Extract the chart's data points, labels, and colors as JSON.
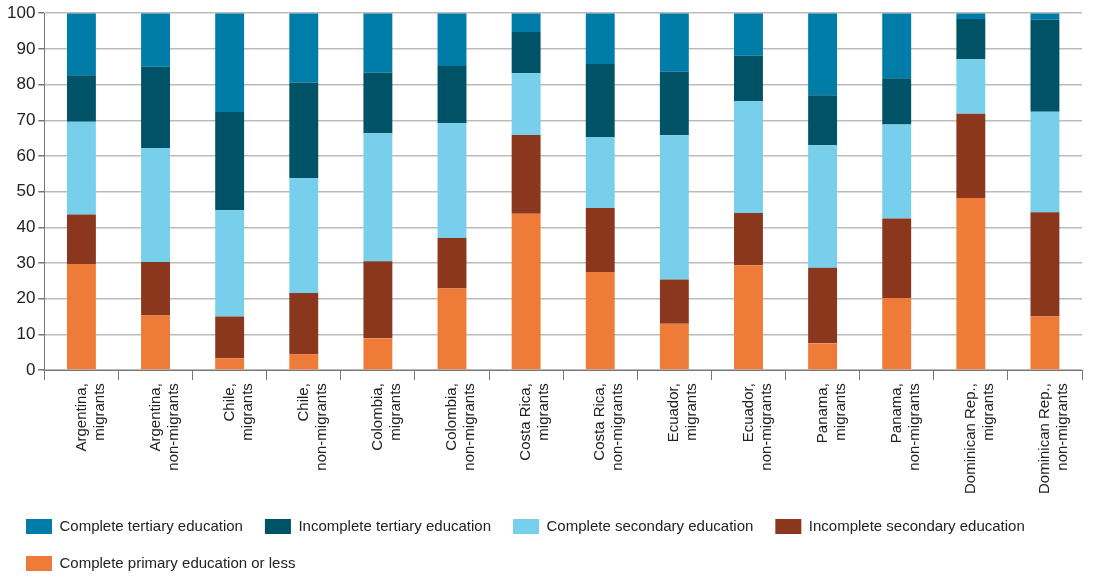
{
  "chart_data": {
    "type": "bar",
    "stacked": true,
    "categories": [
      "Argentina, migrants",
      "Argentina, non-migrants",
      "Chile, migrants",
      "Chile, non-migrants",
      "Colombia, migrants",
      "Colombia, non-migrants",
      "Costa Rica, migrants",
      "Costa Rica, non-migrants",
      "Ecuador, migrants",
      "Ecuador, non-migrants",
      "Panama, migrants",
      "Panama, non-migrants",
      "Dominican Rep., migrants",
      "Dominican Rep., non-migrants"
    ],
    "series": [
      {
        "name": "Complete primary education or less",
        "color": "#ef7b39",
        "values": [
          29.7,
          15.3,
          3.3,
          4.4,
          8.9,
          22.9,
          43.8,
          27.5,
          13.0,
          29.4,
          7.5,
          20.2,
          48.2,
          15.0
        ]
      },
      {
        "name": "Incomplete secondary education",
        "color": "#8b371d",
        "values": [
          13.9,
          15.0,
          11.7,
          17.2,
          21.6,
          14.1,
          22.1,
          17.9,
          12.4,
          14.6,
          21.2,
          22.3,
          23.6,
          29.2
        ]
      },
      {
        "name": "Complete secondary education",
        "color": "#78cfeb",
        "values": [
          26.0,
          31.9,
          29.8,
          32.2,
          35.9,
          32.2,
          17.3,
          19.9,
          40.4,
          31.4,
          34.3,
          26.3,
          15.3,
          28.2
        ]
      },
      {
        "name": "Incomplete tertiary education",
        "color": "#005366",
        "values": [
          13.0,
          22.8,
          27.5,
          26.8,
          17.0,
          16.0,
          11.5,
          20.5,
          17.8,
          12.7,
          14.0,
          13.0,
          11.3,
          25.8
        ]
      },
      {
        "name": "Complete tertiary education",
        "color": "#007ca8",
        "values": [
          17.4,
          15.0,
          27.7,
          19.4,
          16.6,
          14.8,
          5.3,
          14.2,
          16.4,
          11.9,
          23.0,
          18.2,
          1.6,
          1.8
        ]
      }
    ],
    "ylim": [
      0,
      100
    ],
    "yticks": [
      0,
      10,
      20,
      30,
      40,
      50,
      60,
      70,
      80,
      90,
      100
    ],
    "grid": "y",
    "legend": "bottom left"
  }
}
